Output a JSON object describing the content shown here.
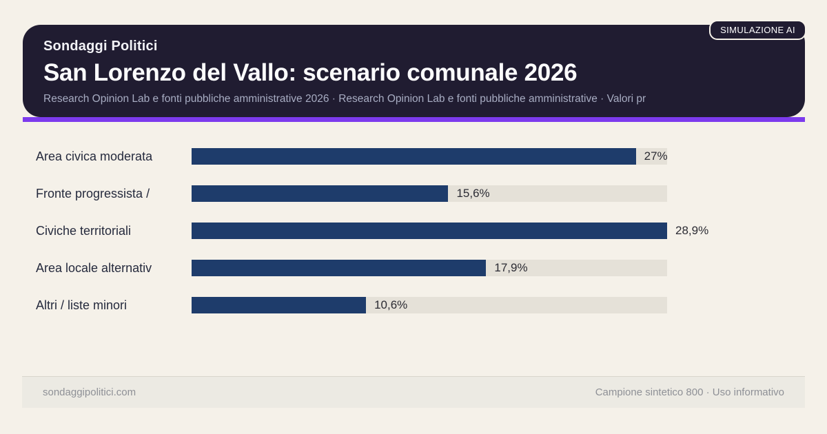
{
  "page": {
    "background": "#f5f1e9"
  },
  "header": {
    "kicker": "Sondaggi Politici",
    "title": "San Lorenzo del Vallo: scenario comunale 2026",
    "subtitle": "Research Opinion Lab e fonti pubbliche amministrative 2026 · Research Opinion Lab e fonti pubbliche amministrative · Valori pr",
    "badge": "SIMULAZIONE AI",
    "background": "#201c31",
    "accent_color": "#7c3aed"
  },
  "chart_data": {
    "type": "bar",
    "orientation": "horizontal",
    "title": "San Lorenzo del Vallo: scenario comunale 2026",
    "categories": [
      "Area civica moderata",
      "Fronte progressista /",
      "Civiche territoriali",
      "Area locale alternativ",
      "Altri / liste minori"
    ],
    "values": [
      27,
      15.6,
      28.9,
      17.9,
      10.6
    ],
    "value_labels": [
      "27%",
      "15,6%",
      "28,9%",
      "17,9%",
      "10,6%"
    ],
    "xlim": [
      0,
      28.9
    ],
    "bar_color": "#1e3c6b",
    "track_color": "#e5e1d8",
    "grid": false,
    "legend": false
  },
  "footer": {
    "left": "sondaggipolitici.com",
    "right": "Campione sintetico 800 · Uso informativo"
  }
}
